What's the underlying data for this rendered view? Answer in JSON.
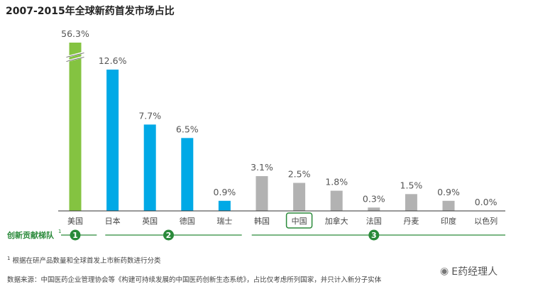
{
  "chart_data": {
    "type": "bar",
    "title": "2007-2015年全球新药首发市场占比",
    "categories": [
      "美国",
      "日本",
      "英国",
      "德国",
      "瑞士",
      "韩国",
      "中国",
      "加拿大",
      "法国",
      "丹麦",
      "印度",
      "以色列"
    ],
    "values": [
      56.3,
      12.6,
      7.7,
      6.5,
      0.9,
      3.1,
      2.5,
      1.8,
      0.3,
      1.5,
      0.9,
      0.0
    ],
    "value_labels": [
      "56.3%",
      "12.6%",
      "7.7%",
      "6.5%",
      "0.9%",
      "3.1%",
      "2.5%",
      "1.8%",
      "0.3%",
      "1.5%",
      "0.9%",
      "0.0%"
    ],
    "tiers": [
      1,
      2,
      2,
      2,
      2,
      3,
      3,
      3,
      3,
      3,
      3,
      3
    ],
    "axis_break": true,
    "highlighted_category": "中国",
    "ylim": [
      0,
      14
    ],
    "xlabel": "",
    "ylabel": ""
  },
  "colors": {
    "tier1": "#84c341",
    "tier2": "#00a9e6",
    "tier3": "#b2b2b2",
    "accent_green": "#2a8a3a",
    "axis": "#333333"
  },
  "tier_legend": {
    "label": "创新贡献梯队",
    "superscript": "1",
    "tier_numbers": [
      "1",
      "2",
      "3"
    ]
  },
  "footnote": {
    "marker": "1",
    "text": "根据在研产品数量和全球首发上市新药数进行分类"
  },
  "source": "数据来源：中国医药企业管理协会等《构建可持续发展的中国医药创新生态系统》，占比仅考虑所列国家，并只计入新分子实体",
  "watermark": {
    "icon": "wechat-icon",
    "text": "E药经理人"
  }
}
